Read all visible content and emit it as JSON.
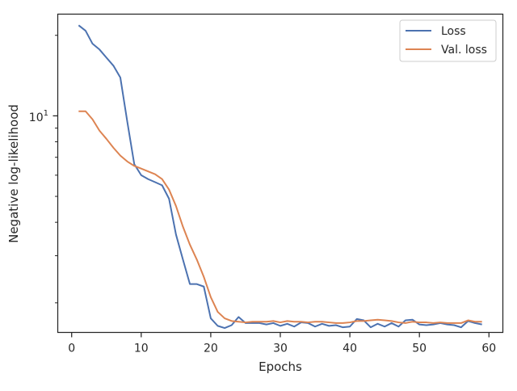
{
  "chart_data": {
    "type": "line",
    "xlabel": "Epochs",
    "ylabel": "Negative log-likelihood",
    "yscale": "log",
    "xlim": [
      -2.0,
      62.0
    ],
    "ylim": [
      1.55,
      24.0
    ],
    "xticks": [
      0,
      10,
      20,
      30,
      40,
      50,
      60
    ],
    "xtick_labels": [
      "0",
      "10",
      "20",
      "30",
      "40",
      "50",
      "60"
    ],
    "ytick_major": [
      10
    ],
    "ytick_major_label_base": "10",
    "ytick_major_label_exp": "1",
    "ytick_minor": [
      2,
      3,
      4,
      5,
      6,
      7,
      8,
      9,
      20
    ],
    "grid": false,
    "legend_position": "top-right",
    "series": [
      {
        "name": "Loss",
        "color": "#4c72b0",
        "x": [
          1,
          2,
          3,
          4,
          5,
          6,
          7,
          8,
          9,
          10,
          11,
          12,
          13,
          14,
          15,
          16,
          17,
          18,
          19,
          20,
          21,
          22,
          23,
          24,
          25,
          26,
          27,
          28,
          29,
          30,
          31,
          32,
          33,
          34,
          35,
          36,
          37,
          38,
          39,
          40,
          41,
          42,
          43,
          44,
          45,
          46,
          47,
          48,
          49,
          50,
          51,
          52,
          53,
          54,
          55,
          56,
          57,
          58,
          59
        ],
        "values": [
          21.8,
          20.8,
          18.6,
          17.7,
          16.5,
          15.4,
          13.9,
          9.5,
          6.6,
          6.0,
          5.8,
          5.65,
          5.5,
          4.9,
          3.6,
          2.9,
          2.35,
          2.35,
          2.3,
          1.75,
          1.64,
          1.61,
          1.65,
          1.77,
          1.68,
          1.68,
          1.68,
          1.66,
          1.68,
          1.64,
          1.67,
          1.63,
          1.69,
          1.68,
          1.63,
          1.67,
          1.64,
          1.65,
          1.62,
          1.63,
          1.74,
          1.72,
          1.62,
          1.67,
          1.63,
          1.68,
          1.63,
          1.72,
          1.73,
          1.66,
          1.65,
          1.66,
          1.68,
          1.66,
          1.65,
          1.62,
          1.71,
          1.68,
          1.66
        ]
      },
      {
        "name": "Val. loss",
        "color": "#dd8452",
        "x": [
          1,
          2,
          3,
          4,
          5,
          6,
          7,
          8,
          9,
          10,
          11,
          12,
          13,
          14,
          15,
          16,
          17,
          18,
          19,
          20,
          21,
          22,
          23,
          24,
          25,
          26,
          27,
          28,
          29,
          30,
          31,
          32,
          33,
          34,
          35,
          36,
          37,
          38,
          39,
          40,
          41,
          42,
          43,
          44,
          45,
          46,
          47,
          48,
          49,
          50,
          51,
          52,
          53,
          54,
          55,
          56,
          57,
          58,
          59
        ],
        "values": [
          10.4,
          10.4,
          9.7,
          8.8,
          8.2,
          7.6,
          7.1,
          6.75,
          6.5,
          6.35,
          6.2,
          6.05,
          5.8,
          5.3,
          4.6,
          3.85,
          3.3,
          2.9,
          2.5,
          2.1,
          1.85,
          1.75,
          1.71,
          1.7,
          1.69,
          1.7,
          1.7,
          1.7,
          1.71,
          1.69,
          1.71,
          1.7,
          1.7,
          1.69,
          1.7,
          1.7,
          1.69,
          1.68,
          1.68,
          1.69,
          1.71,
          1.71,
          1.72,
          1.73,
          1.72,
          1.71,
          1.69,
          1.68,
          1.7,
          1.69,
          1.69,
          1.68,
          1.69,
          1.68,
          1.68,
          1.68,
          1.72,
          1.7,
          1.7
        ]
      }
    ]
  }
}
